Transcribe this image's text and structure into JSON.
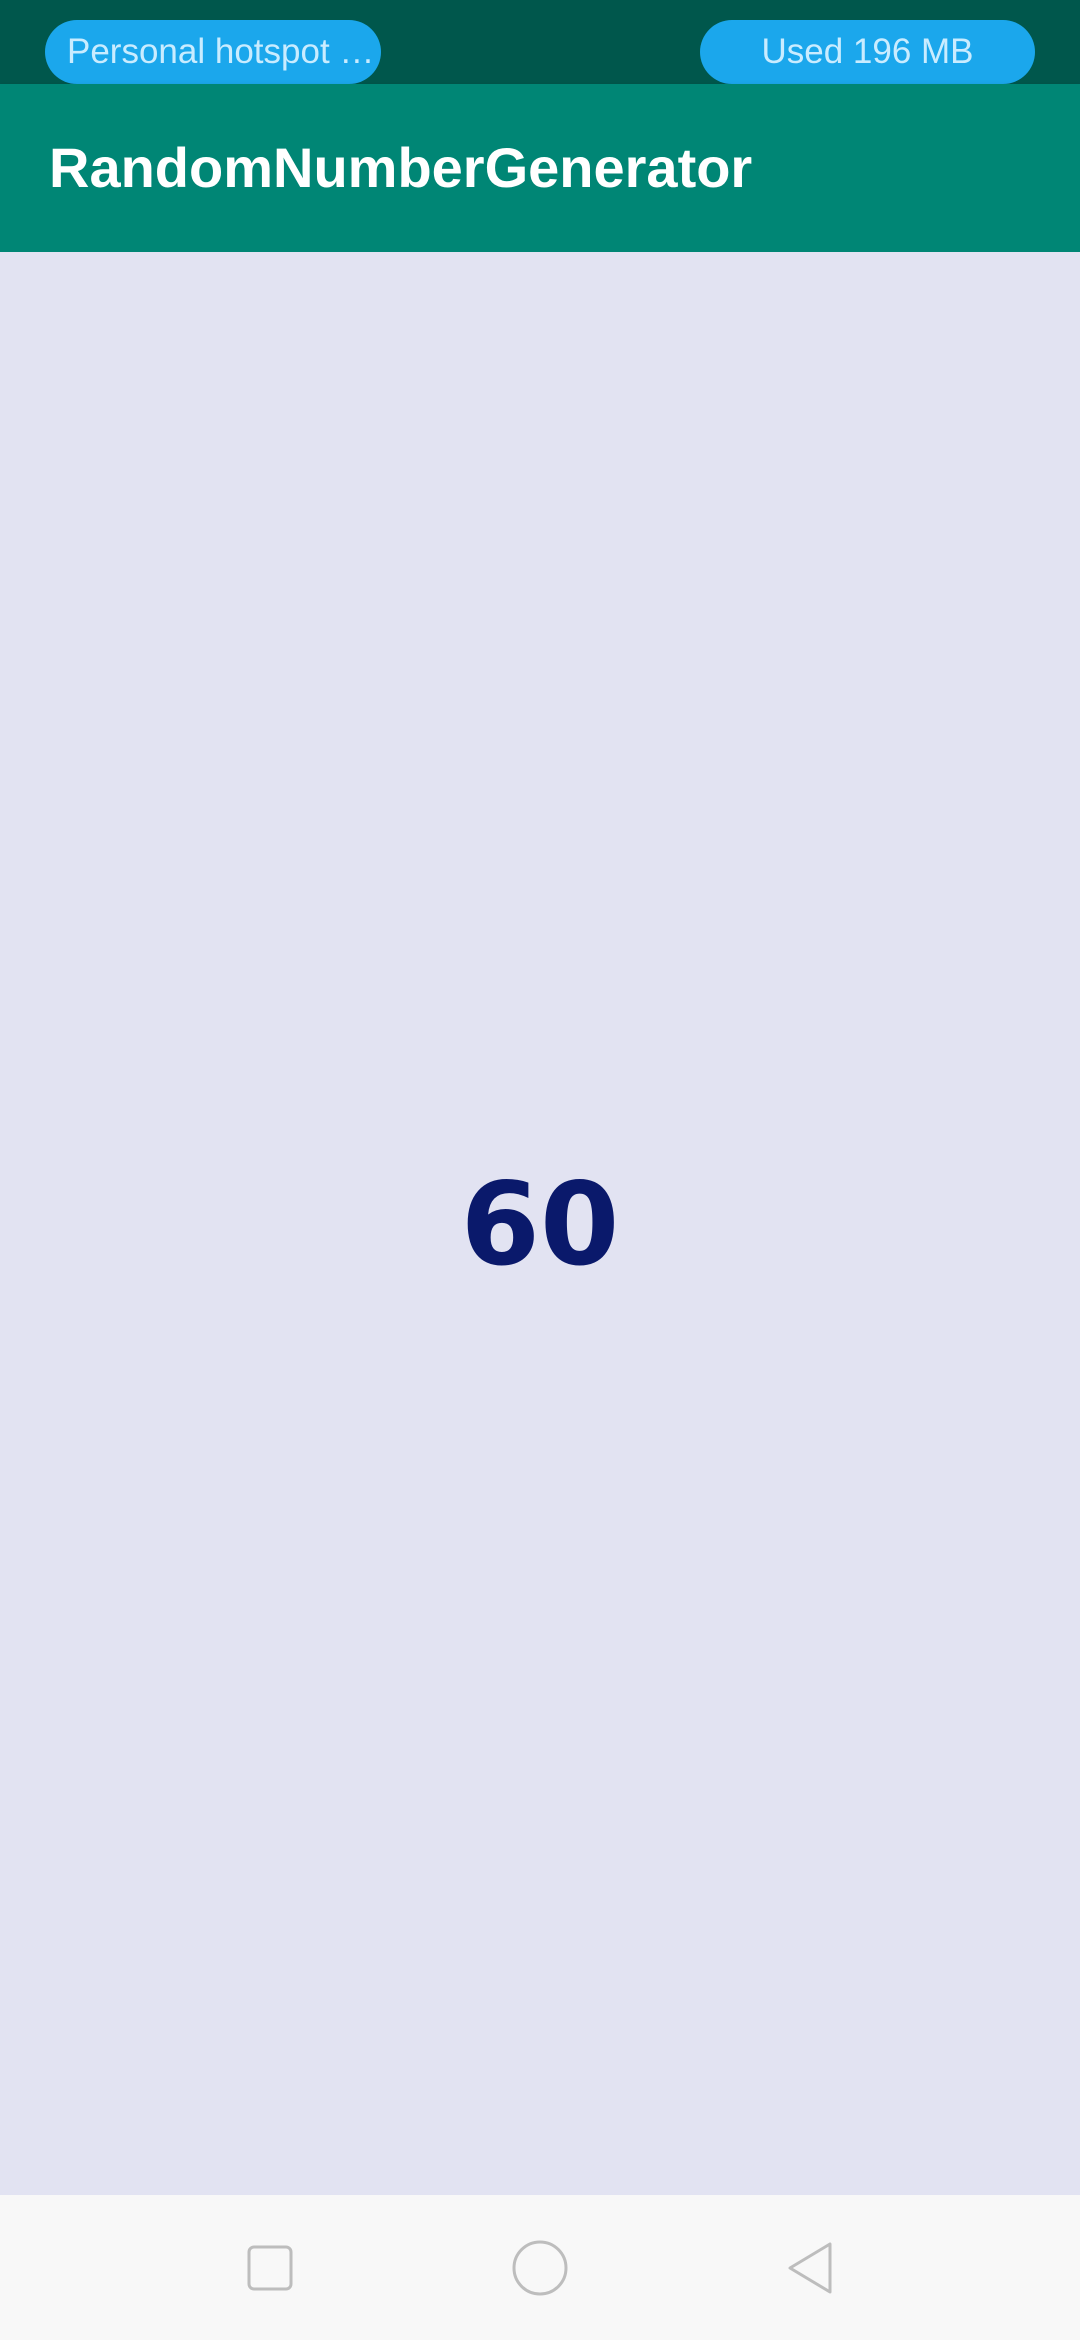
{
  "status_bar": {
    "hotspot_label": "Personal hotspot …",
    "data_usage_label": "Used  196 MB"
  },
  "app_bar": {
    "title": "RandomNumberGenerator"
  },
  "main": {
    "random_number": "60"
  },
  "nav_bar": {
    "recent_icon": "square-icon",
    "home_icon": "circle-icon",
    "back_icon": "triangle-back-icon"
  },
  "colors": {
    "status_bar": "#00574c",
    "app_bar": "#008675",
    "background": "#e2e3f2",
    "number": "#0a196b",
    "pill": "#1ba7ec"
  }
}
